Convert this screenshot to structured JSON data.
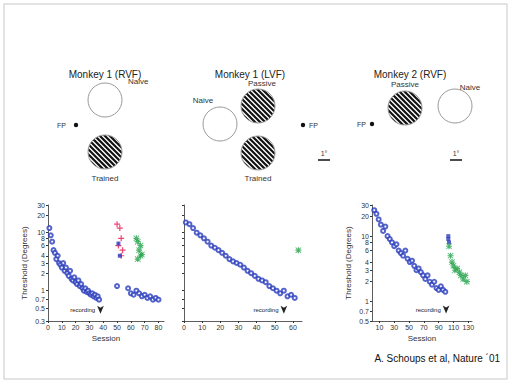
{
  "schematics": [
    {
      "title": "Monkey 1 (RVF)",
      "fp": "FP",
      "stimuli": [
        {
          "label": "Naive",
          "grating": false
        },
        {
          "label": "Trained",
          "grating": true
        }
      ]
    },
    {
      "title": "Monkey 1 (LVF)",
      "fp": "FP",
      "scale": "1°",
      "stimuli": [
        {
          "label": "Passive",
          "grating": true
        },
        {
          "label": "Naive",
          "grating": false
        },
        {
          "label": "Trained",
          "grating": true
        }
      ]
    },
    {
      "title": "Monkey 2 (RVF)",
      "fp": "FP",
      "scale": "1°",
      "stimuli": [
        {
          "label": "Passive",
          "grating": true
        },
        {
          "label": "Naive",
          "grating": false
        }
      ]
    }
  ],
  "credit": "A. Schoups et al, Nature ´01",
  "chart_data": [
    {
      "type": "scatter",
      "xlabel": "Session",
      "ylabel": "Threshold (Degrees)",
      "log": "y",
      "grid": false,
      "xlim": [
        0,
        84
      ],
      "xticks": [
        0,
        10,
        20,
        30,
        40,
        50,
        60,
        70,
        80
      ],
      "ylim": [
        0.3,
        30
      ],
      "yticks": [
        0.3,
        0.5,
        0.7,
        1,
        2,
        3,
        4,
        6,
        8,
        10,
        20,
        30
      ],
      "annotations": [
        {
          "text": "recording",
          "x": 38,
          "y": 0.4,
          "marker": "arrow"
        }
      ],
      "series": [
        {
          "color": "#2b3dbd",
          "marker": "circle_open",
          "x": [
            1,
            2,
            3,
            4,
            5,
            6,
            7,
            8,
            9,
            10,
            11,
            12,
            13,
            14,
            15,
            16,
            17,
            18,
            19,
            20,
            21,
            22,
            23,
            24,
            25,
            26,
            27,
            28,
            29,
            30,
            31,
            32,
            33,
            34,
            35,
            36,
            37,
            50,
            58,
            60,
            62,
            64,
            66,
            68,
            70,
            72,
            74,
            76,
            78,
            80
          ],
          "values": [
            12,
            9,
            7,
            5,
            4.5,
            3.5,
            4,
            3,
            2.8,
            2.5,
            3,
            2.2,
            2.5,
            2,
            1.8,
            2.2,
            1.6,
            1.5,
            1.7,
            1.4,
            1.3,
            1.5,
            1.2,
            1.3,
            1.1,
            1.0,
            1.1,
            0.95,
            1.0,
            0.9,
            0.85,
            0.9,
            0.8,
            0.85,
            0.75,
            0.8,
            0.7,
            1.2,
            1.1,
            0.9,
            0.85,
            1.0,
            0.9,
            0.8,
            0.85,
            0.75,
            0.8,
            0.7,
            0.75,
            0.7
          ]
        },
        {
          "color": "#e8174f",
          "marker": "plus",
          "x": [
            50,
            52,
            53,
            51,
            54,
            53
          ],
          "values": [
            14,
            12,
            8,
            6,
            5,
            4
          ]
        },
        {
          "color": "#2b3dbd",
          "marker": "square",
          "x": [
            51,
            52
          ],
          "values": [
            6.5,
            4
          ]
        },
        {
          "color": "#22a34a",
          "marker": "asterisk",
          "x": [
            64,
            65,
            66,
            67,
            65,
            68,
            67
          ],
          "values": [
            8,
            7,
            5,
            4,
            3.5,
            4.2,
            6
          ]
        }
      ]
    },
    {
      "type": "scatter",
      "log": "y",
      "grid": false,
      "tick_labels": "x",
      "xlim": [
        0,
        65
      ],
      "xticks": [
        0,
        10,
        20,
        30,
        40,
        50,
        60
      ],
      "ylim": [
        0.3,
        30
      ],
      "yticks": [
        0.3,
        0.5,
        0.7,
        1,
        2,
        3,
        4,
        6,
        8,
        10,
        20,
        30
      ],
      "annotations": [
        {
          "text": "recording",
          "x": 55,
          "y": 0.4,
          "marker": "arrow"
        }
      ],
      "series": [
        {
          "color": "#2b3dbd",
          "marker": "circle_open",
          "x": [
            1,
            3,
            5,
            7,
            9,
            11,
            13,
            15,
            17,
            19,
            21,
            23,
            25,
            27,
            29,
            31,
            33,
            35,
            37,
            39,
            41,
            43,
            45,
            47,
            49,
            51,
            53,
            55,
            57,
            59,
            61
          ],
          "values": [
            15,
            14,
            12,
            10,
            9,
            8,
            7,
            6,
            5.5,
            5,
            4.5,
            4,
            3.5,
            3.2,
            3,
            2.8,
            2.5,
            2.2,
            2,
            1.8,
            1.6,
            1.5,
            1.4,
            1.2,
            1.1,
            1.0,
            0.9,
            1.0,
            0.8,
            0.85,
            0.75
          ]
        },
        {
          "color": "#22a34a",
          "marker": "asterisk",
          "x": [
            63
          ],
          "values": [
            5
          ]
        }
      ]
    },
    {
      "type": "scatter",
      "xlabel": "Session",
      "ylabel": "Threshold (Degrees)",
      "log": "y",
      "grid": false,
      "xlim": [
        0,
        135
      ],
      "xticks": [
        10,
        30,
        50,
        70,
        90,
        110,
        130
      ],
      "ylim": [
        0.5,
        30
      ],
      "yticks": [
        0.5,
        0.7,
        1,
        2,
        3,
        4,
        6,
        8,
        10,
        20,
        30
      ],
      "annotations": [
        {
          "text": "recording",
          "x": 100,
          "y": 0.65,
          "marker": "arrow"
        }
      ],
      "series": [
        {
          "color": "#2b3dbd",
          "marker": "circle_open",
          "x": [
            3,
            6,
            9,
            12,
            15,
            18,
            21,
            24,
            27,
            30,
            33,
            36,
            39,
            42,
            45,
            48,
            51,
            54,
            57,
            60,
            63,
            66,
            69,
            72,
            75,
            78,
            81,
            84,
            87,
            90,
            93,
            96,
            99
          ],
          "values": [
            25,
            22,
            18,
            15,
            12,
            14,
            10,
            9,
            8,
            7,
            7.5,
            6,
            5.5,
            5,
            6,
            4.5,
            4,
            4.2,
            3.5,
            3,
            3.2,
            2.8,
            2.5,
            2.2,
            2.5,
            2,
            1.8,
            2,
            1.6,
            1.5,
            1.7,
            1.5,
            1.4
          ]
        },
        {
          "color": "#2b3dbd",
          "marker": "square",
          "x": [
            103,
            104,
            103
          ],
          "values": [
            10,
            8,
            9
          ]
        },
        {
          "color": "#22a34a",
          "marker": "asterisk",
          "x": [
            104,
            106,
            108,
            110,
            112,
            115,
            118,
            120,
            123,
            126,
            128
          ],
          "values": [
            7,
            5,
            4,
            3.5,
            3,
            3.2,
            2.8,
            2.5,
            2.2,
            2.5,
            2
          ]
        }
      ]
    }
  ]
}
